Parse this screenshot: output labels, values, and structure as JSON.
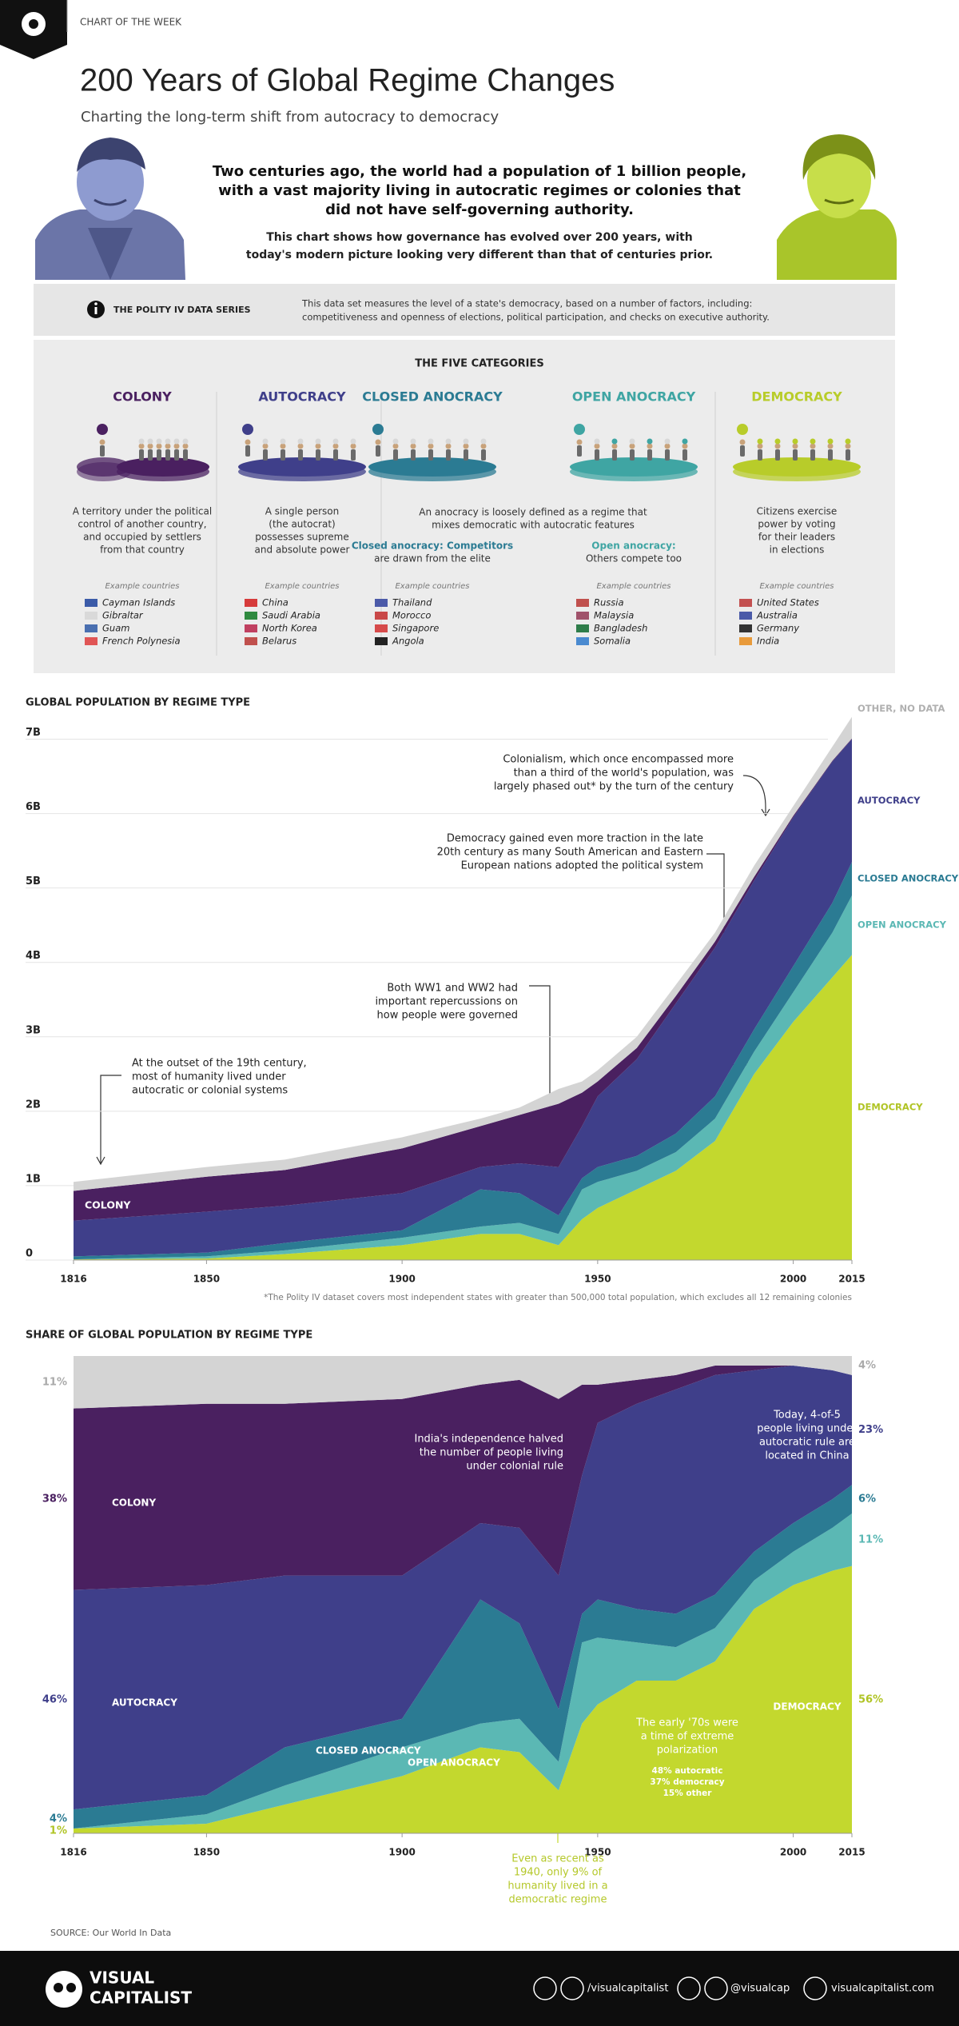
{
  "header": {
    "label": "CHART OF THE WEEK",
    "title": "200 Years of Global Regime Changes",
    "subtitle": "Charting the long-term shift from autocracy to democracy"
  },
  "intro": {
    "lead": [
      "Two centuries ago, the world had a population of 1 billion people,",
      "with a vast majority living in autocratic regimes or colonies that",
      "did not have self-governing authority."
    ],
    "body": [
      "This chart shows how governance has evolved over 200 years, with",
      "today's modern picture looking very different than that of centuries prior."
    ]
  },
  "info": {
    "title": "THE POLITY IV DATA SERIES",
    "text": [
      "This data set measures the level of a state's democracy, based on a number of factors, including:",
      "competitiveness and openness of elections, political participation, and checks on executive authority."
    ]
  },
  "categories": {
    "title": "THE FIVE CATEGORIES",
    "example_label": "Example countries",
    "anocracy_note": [
      "An anocracy is loosely defined as a regime that",
      "mixes democratic with autocratic features"
    ],
    "items": [
      {
        "name": "COLONY",
        "color": "#4a2060",
        "description": [
          "A territory under the political",
          "control of another country,",
          "and occupied by settlers",
          "from that country"
        ],
        "countries": [
          "Cayman Islands",
          "Gibraltar",
          "Guam",
          "French Polynesia"
        ]
      },
      {
        "name": "AUTOCRACY",
        "color": "#3f3f8a",
        "description": [
          "A single person",
          "(the autocrat)",
          "possesses supreme",
          "and absolute power"
        ],
        "countries": [
          "China",
          "Saudi Arabia",
          "North Korea",
          "Belarus"
        ]
      },
      {
        "name": "CLOSED ANOCRACY",
        "color": "#2b7b93",
        "description": [
          "Closed anocracy: Competitors",
          "are drawn from the elite"
        ],
        "countries": [
          "Thailand",
          "Morocco",
          "Singapore",
          "Angola"
        ]
      },
      {
        "name": "OPEN ANOCRACY",
        "color": "#3fa5a3",
        "description": [
          "Open anocracy:",
          "Others compete too"
        ],
        "countries": [
          "Russia",
          "Malaysia",
          "Bangladesh",
          "Somalia"
        ]
      },
      {
        "name": "DEMOCRACY",
        "color": "#b8cc2a",
        "description": [
          "Citizens exercise",
          "power by voting",
          "for their leaders",
          "in elections"
        ],
        "countries": [
          "United States",
          "Australia",
          "Germany",
          "India"
        ]
      }
    ]
  },
  "chart_data": [
    {
      "type": "area",
      "stacked": true,
      "title": "GLOBAL POPULATION BY REGIME TYPE",
      "x": [
        1816,
        1850,
        1870,
        1900,
        1920,
        1930,
        1940,
        1946,
        1950,
        1960,
        1970,
        1980,
        1990,
        2000,
        2010,
        2015
      ],
      "xlim": [
        1816,
        2015
      ],
      "xticks": [
        1816,
        1850,
        1900,
        1950,
        2000,
        2015
      ],
      "ylim": [
        0,
        7.5
      ],
      "yticks": [
        0,
        {
          "value": 1,
          "label": "1B"
        },
        {
          "value": 2,
          "label": "2B"
        },
        {
          "value": 3,
          "label": "3B"
        },
        {
          "value": 4,
          "label": "4B"
        },
        {
          "value": 5,
          "label": "5B"
        },
        {
          "value": 6,
          "label": "6B"
        },
        {
          "value": 7,
          "label": "7B"
        }
      ],
      "grid": true,
      "series": [
        {
          "name": "DEMOCRACY",
          "color": "#c3d82e",
          "values": [
            0.01,
            0.02,
            0.08,
            0.2,
            0.35,
            0.35,
            0.2,
            0.55,
            0.7,
            0.95,
            1.2,
            1.6,
            2.5,
            3.2,
            3.8,
            4.1
          ]
        },
        {
          "name": "OPEN ANOCRACY",
          "color": "#5bb8b4",
          "values": [
            0,
            0.03,
            0.05,
            0.1,
            0.1,
            0.15,
            0.15,
            0.4,
            0.35,
            0.25,
            0.25,
            0.3,
            0.3,
            0.4,
            0.6,
            0.8
          ]
        },
        {
          "name": "CLOSED ANOCRACY",
          "color": "#2b7b93",
          "values": [
            0.04,
            0.05,
            0.1,
            0.1,
            0.5,
            0.4,
            0.25,
            0.15,
            0.2,
            0.2,
            0.25,
            0.3,
            0.3,
            0.35,
            0.4,
            0.45
          ]
        },
        {
          "name": "AUTOCRACY",
          "color": "#3f3f8a",
          "values": [
            0.48,
            0.55,
            0.5,
            0.5,
            0.3,
            0.4,
            0.65,
            0.7,
            0.95,
            1.3,
            1.75,
            2.0,
            2.0,
            2.0,
            1.9,
            1.65
          ]
        },
        {
          "name": "COLONY",
          "color": "#4a2060",
          "values": [
            0.4,
            0.47,
            0.48,
            0.6,
            0.55,
            0.65,
            0.85,
            0.45,
            0.2,
            0.15,
            0.1,
            0.08,
            0.05,
            0.02,
            0.01,
            0.01
          ]
        },
        {
          "name": "OTHER, NO DATA",
          "color": "#d4d4d4",
          "values": [
            0.12,
            0.13,
            0.14,
            0.15,
            0.1,
            0.1,
            0.2,
            0.15,
            0.15,
            0.15,
            0.15,
            0.12,
            0.15,
            0.13,
            0.19,
            0.29
          ]
        }
      ],
      "annotations": [
        [
          "Colonialism, which once encompassed more",
          "than a third of the world's population, was",
          "largely phased out* by the turn of the century"
        ],
        [
          "Democracy gained even more traction in the late",
          "20th century as many South American and Eastern",
          "European nations adopted the political system"
        ],
        [
          "Both WW1 and WW2 had",
          "important repercussions on",
          "how people were governed"
        ],
        [
          "At the outset of the 19th century,",
          "most of humanity lived under",
          "autocratic or colonial systems"
        ]
      ],
      "footnote": "*The Polity IV dataset covers most independent states with greater than 500,000 total population, which excludes all 12 remaining colonies"
    },
    {
      "type": "area",
      "stacked": true,
      "title": "SHARE OF GLOBAL POPULATION BY REGIME TYPE",
      "x": [
        1816,
        1850,
        1870,
        1900,
        1920,
        1930,
        1940,
        1946,
        1950,
        1960,
        1970,
        1980,
        1990,
        2000,
        2010,
        2015
      ],
      "xlim": [
        1816,
        2015
      ],
      "xticks": [
        1816,
        1850,
        1900,
        1950,
        2000,
        2015
      ],
      "ylim": [
        0,
        100
      ],
      "grid": false,
      "series": [
        {
          "name": "DEMOCRACY",
          "color": "#c3d82e",
          "values": [
            1,
            2,
            6,
            12,
            18,
            17,
            9,
            23,
            27,
            32,
            32,
            36,
            47,
            52,
            55,
            56
          ],
          "value_labels": [
            "1%",
            null,
            null,
            null,
            null,
            null,
            null,
            null,
            null,
            null,
            null,
            null,
            null,
            null,
            null,
            "56%"
          ]
        },
        {
          "name": "OPEN ANOCRACY",
          "color": "#5bb8b4",
          "values": [
            0,
            2,
            4,
            6,
            5,
            7,
            6,
            17,
            14,
            8,
            7,
            7,
            6,
            7,
            9,
            11
          ],
          "value_labels": [
            null,
            null,
            null,
            null,
            null,
            null,
            null,
            null,
            null,
            null,
            null,
            null,
            null,
            null,
            null,
            "11%"
          ]
        },
        {
          "name": "CLOSED ANOCRACY",
          "color": "#2b7b93",
          "values": [
            4,
            4,
            8,
            6,
            26,
            20,
            11,
            6,
            8,
            7,
            7,
            7,
            6,
            6,
            6,
            6
          ],
          "value_labels": [
            "4%",
            null,
            null,
            null,
            null,
            null,
            null,
            null,
            null,
            null,
            null,
            null,
            null,
            null,
            null,
            "6%"
          ]
        },
        {
          "name": "AUTOCRACY",
          "color": "#3f3f8a",
          "values": [
            46,
            44,
            36,
            30,
            16,
            20,
            28,
            29,
            37,
            43,
            47,
            46,
            38,
            33,
            27,
            23
          ],
          "value_labels": [
            "46%",
            null,
            null,
            null,
            null,
            null,
            null,
            null,
            null,
            null,
            null,
            null,
            null,
            null,
            null,
            "23%"
          ]
        },
        {
          "name": "COLONY",
          "color": "#4a2060",
          "values": [
            38,
            38,
            36,
            37,
            29,
            31,
            37,
            19,
            8,
            5,
            3,
            2,
            1,
            0,
            0,
            0
          ],
          "value_labels": [
            "38%",
            null,
            null,
            null,
            null,
            null,
            null,
            null,
            null,
            null,
            null,
            null,
            null,
            null,
            null,
            null
          ]
        },
        {
          "name": "OTHER, NO DATA",
          "color": "#d4d4d4",
          "values": [
            11,
            10,
            10,
            9,
            6,
            5,
            9,
            6,
            6,
            5,
            4,
            2,
            2,
            2,
            3,
            4
          ],
          "value_labels": [
            "11%",
            null,
            null,
            null,
            null,
            null,
            null,
            null,
            null,
            null,
            null,
            null,
            null,
            null,
            null,
            "4%"
          ]
        }
      ],
      "annotations": [
        [
          "India's independence halved",
          "the number of people living",
          "under colonial rule"
        ],
        [
          "Today, 4-of-5",
          "people living under",
          "autocratic rule are",
          "located in China"
        ],
        [
          "The early '70s were",
          "a time of extreme",
          "polarization"
        ],
        [
          "48% autocratic",
          "37% democracy",
          "15% other"
        ],
        [
          "Even as recent as",
          "1940, only 9% of",
          "humanity lived in a",
          "democratic regime"
        ]
      ]
    }
  ],
  "source": "SOURCE: Our World In Data",
  "footer": {
    "brand": [
      "VISUAL",
      "CAPITALIST"
    ],
    "social": [
      "/visualcapitalist",
      "@visualcap",
      "visualcapitalist.com"
    ]
  }
}
